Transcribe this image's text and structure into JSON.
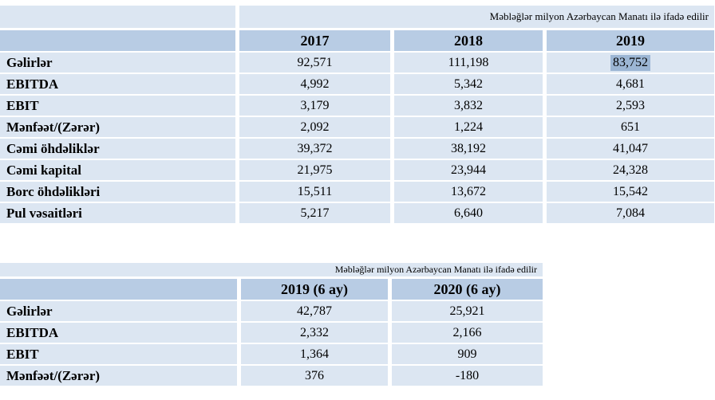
{
  "colors": {
    "header_bg": "#b8cce4",
    "row_bg": "#dce6f2",
    "selection_bg": "#9cb6d4",
    "text": "#000000",
    "page_bg": "#ffffff"
  },
  "table1": {
    "note": "Məbləğlər milyon Azərbaycan Manatı ilə ifadə edilir",
    "columns": [
      "2017",
      "2018",
      "2019"
    ],
    "rows": [
      {
        "label": "Gəlirlər",
        "values": [
          "92,571",
          "111,198",
          "83,752"
        ],
        "selected_value": "83,752"
      },
      {
        "label": "EBITDA",
        "values": [
          "4,992",
          "5,342",
          "4,681"
        ]
      },
      {
        "label": "EBIT",
        "values": [
          "3,179",
          "3,832",
          "2,593"
        ]
      },
      {
        "label": "Mənfəət/(Zərər)",
        "values": [
          "2,092",
          "1,224",
          "651"
        ]
      },
      {
        "label": "Cəmi öhdəliklər",
        "values": [
          "39,372",
          "38,192",
          "41,047"
        ]
      },
      {
        "label": "Cəmi kapital",
        "values": [
          "21,975",
          "23,944",
          "24,328"
        ]
      },
      {
        "label": "Borc öhdəlikləri",
        "values": [
          "15,511",
          "13,672",
          "15,542"
        ]
      },
      {
        "label": "Pul vəsaitləri",
        "values": [
          "5,217",
          "6,640",
          "7,084"
        ]
      }
    ]
  },
  "table2": {
    "note": "Məbləğlər milyon Azərbaycan Manatı ilə ifadə edilir",
    "columns": [
      "2019 (6 ay)",
      "2020 (6 ay)"
    ],
    "rows": [
      {
        "label": "Gəlirlər",
        "values": [
          "42,787",
          "25,921"
        ]
      },
      {
        "label": "EBITDA",
        "values": [
          "2,332",
          "2,166"
        ]
      },
      {
        "label": "EBIT",
        "values": [
          "1,364",
          "909"
        ]
      },
      {
        "label": "Mənfəət/(Zərər)",
        "values": [
          "376",
          "-180"
        ]
      }
    ]
  },
  "chart_data": {
    "type": "table",
    "tables": [
      {
        "title": "Annual financials (million AZN)",
        "columns": [
          "",
          "2017",
          "2018",
          "2019"
        ],
        "rows": [
          [
            "Gəlirlər",
            92571,
            111198,
            83752
          ],
          [
            "EBITDA",
            4992,
            5342,
            4681
          ],
          [
            "EBIT",
            3179,
            3832,
            2593
          ],
          [
            "Mənfəət/(Zərər)",
            2092,
            1224,
            651
          ],
          [
            "Cəmi öhdəliklər",
            39372,
            38192,
            41047
          ],
          [
            "Cəmi kapital",
            21975,
            23944,
            24328
          ],
          [
            "Borc öhdəlikləri",
            15511,
            13672,
            15542
          ],
          [
            "Pul vəsaitləri",
            5217,
            6640,
            7084
          ]
        ]
      },
      {
        "title": "Half-year financials (million AZN)",
        "columns": [
          "",
          "2019 (6 ay)",
          "2020 (6 ay)"
        ],
        "rows": [
          [
            "Gəlirlər",
            42787,
            25921
          ],
          [
            "EBITDA",
            2332,
            2166
          ],
          [
            "EBIT",
            1364,
            909
          ],
          [
            "Mənfəət/(Zərər)",
            376,
            -180
          ]
        ]
      }
    ]
  }
}
